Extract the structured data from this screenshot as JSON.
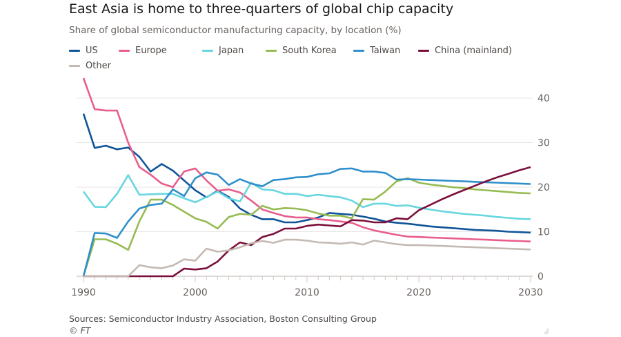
{
  "chart_data": {
    "type": "line",
    "title": "East Asia is home to three-quarters of global chip capacity",
    "subtitle": "Share of global semiconductor manufacturing capacity, by location (%)",
    "xlabel": "",
    "ylabel": "",
    "xlim": [
      1990,
      2030
    ],
    "ylim": [
      0,
      40
    ],
    "x_ticks": [
      "1990",
      "2000",
      "2010",
      "2020",
      "2030"
    ],
    "y_ticks": [
      "0",
      "10",
      "20",
      "30",
      "40"
    ],
    "grid": true,
    "legend_placement": "top",
    "x": [
      1990,
      1991,
      1992,
      1993,
      1994,
      1995,
      1996,
      1997,
      1998,
      1999,
      2000,
      2001,
      2002,
      2003,
      2004,
      2005,
      2006,
      2007,
      2008,
      2009,
      2010,
      2011,
      2012,
      2013,
      2014,
      2015,
      2016,
      2017,
      2018,
      2019,
      2020,
      2021,
      2022,
      2023,
      2024,
      2025,
      2026,
      2027,
      2028,
      2029,
      2030
    ],
    "series": [
      {
        "name": "US",
        "color": "#0f5499",
        "values": [
          36.5,
          28.8,
          29.3,
          28.5,
          28.9,
          26.8,
          23.5,
          25.2,
          23.7,
          21.5,
          19.3,
          17.7,
          19.2,
          17.8,
          15.2,
          13.8,
          12.8,
          12.8,
          12.1,
          12.1,
          12.6,
          13.2,
          14.2,
          14.0,
          13.8,
          13.4,
          12.9,
          12.3,
          12.0,
          11.8,
          11.5,
          11.2,
          11.0,
          10.8,
          10.6,
          10.4,
          10.3,
          10.2,
          10.0,
          9.9,
          9.8
        ]
      },
      {
        "name": "Europe",
        "color": "#e95d8c",
        "values": [
          44.5,
          37.5,
          37.2,
          37.2,
          30.0,
          24.5,
          22.8,
          20.8,
          20.0,
          23.5,
          24.2,
          21.5,
          19.2,
          19.5,
          18.8,
          17.0,
          15.0,
          14.2,
          13.5,
          13.2,
          13.2,
          12.8,
          12.6,
          12.3,
          12.0,
          11.0,
          10.3,
          9.8,
          9.3,
          8.9,
          8.8,
          8.7,
          8.6,
          8.5,
          8.4,
          8.3,
          8.2,
          8.1,
          8.0,
          7.9,
          7.8
        ]
      },
      {
        "name": "Japan",
        "color": "#66d6df",
        "values": [
          19.0,
          15.6,
          15.5,
          18.5,
          22.7,
          18.3,
          18.4,
          18.5,
          18.5,
          17.5,
          16.6,
          17.8,
          19.0,
          17.5,
          16.8,
          21.0,
          19.5,
          19.3,
          18.5,
          18.5,
          18.0,
          18.3,
          18.0,
          17.7,
          17.0,
          15.5,
          16.3,
          16.3,
          15.8,
          15.9,
          15.4,
          15.0,
          14.6,
          14.3,
          14.0,
          13.8,
          13.6,
          13.3,
          13.1,
          12.9,
          12.8
        ]
      },
      {
        "name": "South Korea",
        "color": "#96bb52",
        "values": [
          0,
          8.3,
          8.3,
          7.3,
          5.9,
          12.3,
          17.2,
          17.2,
          16.0,
          14.5,
          13.0,
          12.2,
          10.7,
          13.3,
          14.0,
          13.8,
          15.8,
          15.0,
          15.3,
          15.2,
          14.8,
          14.1,
          13.6,
          13.6,
          13.0,
          17.3,
          17.2,
          19.0,
          21.3,
          22.0,
          21.0,
          20.6,
          20.3,
          20.0,
          19.8,
          19.5,
          19.3,
          19.1,
          18.9,
          18.7,
          18.6
        ]
      },
      {
        "name": "Taiwan",
        "color": "#2e8fcc",
        "values": [
          0,
          9.7,
          9.6,
          8.6,
          12.3,
          15.2,
          16.0,
          16.3,
          19.5,
          18.0,
          22.0,
          23.3,
          22.8,
          20.5,
          21.8,
          20.8,
          20.2,
          21.6,
          21.8,
          22.2,
          22.3,
          22.9,
          23.1,
          24.1,
          24.2,
          23.5,
          23.5,
          23.2,
          21.7,
          21.8,
          21.7,
          21.6,
          21.5,
          21.4,
          21.3,
          21.2,
          21.1,
          21.0,
          20.9,
          20.8,
          20.7
        ]
      },
      {
        "name": "China (mainland)",
        "color": "#7b0f3c",
        "values": [
          0,
          0,
          0,
          0,
          0,
          0,
          0,
          0,
          0,
          1.7,
          1.5,
          1.8,
          3.3,
          5.8,
          7.6,
          7.0,
          8.8,
          9.5,
          10.7,
          10.7,
          11.3,
          11.6,
          11.4,
          11.2,
          12.6,
          12.5,
          12.1,
          12.1,
          13.0,
          12.8,
          14.8,
          16.0,
          17.2,
          18.3,
          19.3,
          20.3,
          21.3,
          22.2,
          23.0,
          23.8,
          24.5
        ]
      },
      {
        "name": "Other",
        "color": "#c4b9b3",
        "values": [
          0,
          0,
          0,
          0,
          0,
          2.5,
          2.0,
          1.8,
          2.4,
          3.8,
          3.5,
          6.2,
          5.5,
          5.8,
          6.5,
          7.4,
          7.9,
          7.5,
          8.2,
          8.2,
          8.0,
          7.6,
          7.5,
          7.3,
          7.6,
          7.1,
          8.0,
          7.6,
          7.2,
          7.0,
          7.0,
          6.9,
          6.8,
          6.7,
          6.6,
          6.5,
          6.4,
          6.3,
          6.2,
          6.1,
          6.0
        ]
      }
    ]
  },
  "footer": {
    "sources": "Sources: Semiconductor Industry Association, Boston Consulting Group",
    "copyright": "© FT"
  }
}
